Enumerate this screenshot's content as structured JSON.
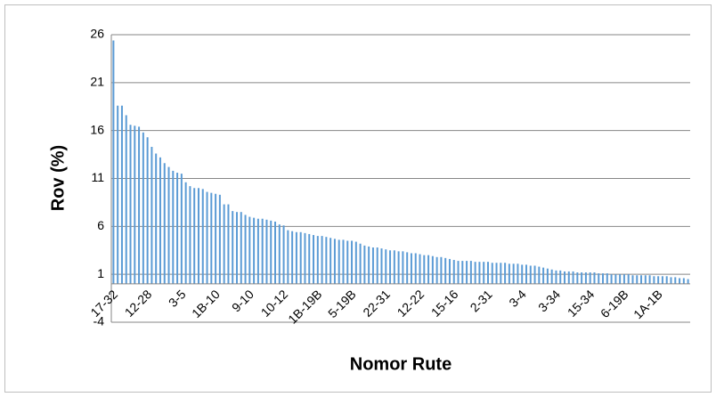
{
  "chart_data": {
    "type": "bar",
    "x_label": "Nomor Rute",
    "y_label": "Rov (%)",
    "color": "#5b9bd5",
    "grid": true,
    "ylim": [
      -4,
      26
    ],
    "yticks": [
      -4,
      1,
      6,
      11,
      16,
      21,
      26
    ],
    "categories": [
      "17-32",
      null,
      null,
      null,
      null,
      null,
      null,
      null,
      "12-28",
      null,
      null,
      null,
      null,
      null,
      null,
      null,
      "3-5",
      null,
      null,
      null,
      null,
      null,
      null,
      null,
      "1B-10",
      null,
      null,
      null,
      null,
      null,
      null,
      null,
      "9-10",
      null,
      null,
      null,
      null,
      null,
      null,
      null,
      "10-12",
      null,
      null,
      null,
      null,
      null,
      null,
      null,
      "1B-19B",
      null,
      null,
      null,
      null,
      null,
      null,
      null,
      "5-19B",
      null,
      null,
      null,
      null,
      null,
      null,
      null,
      "22-31",
      null,
      null,
      null,
      null,
      null,
      null,
      null,
      "12-22",
      null,
      null,
      null,
      null,
      null,
      null,
      null,
      "15-16",
      null,
      null,
      null,
      null,
      null,
      null,
      null,
      "2-31",
      null,
      null,
      null,
      null,
      null,
      null,
      null,
      "3-4",
      null,
      null,
      null,
      null,
      null,
      null,
      null,
      "3-34",
      null,
      null,
      null,
      null,
      null,
      null,
      null,
      "15-34",
      null,
      null,
      null,
      null,
      null,
      null,
      null,
      "6-19B",
      null,
      null,
      null,
      null,
      null,
      null,
      null,
      "1A-1B",
      null,
      null,
      null,
      null,
      null,
      null,
      null
    ],
    "values": [
      25.4,
      18.6,
      18.6,
      17.6,
      16.6,
      16.5,
      16.4,
      15.8,
      15.3,
      14.3,
      13.6,
      13.2,
      12.6,
      12.2,
      11.8,
      11.6,
      11.5,
      10.6,
      10.2,
      10.0,
      10.0,
      9.9,
      9.6,
      9.5,
      9.4,
      9.3,
      8.3,
      8.3,
      7.6,
      7.5,
      7.5,
      7.2,
      7.0,
      6.9,
      6.8,
      6.8,
      6.7,
      6.6,
      6.5,
      6.2,
      6.1,
      5.6,
      5.5,
      5.4,
      5.4,
      5.3,
      5.2,
      5.1,
      5.0,
      5.0,
      4.9,
      4.8,
      4.7,
      4.6,
      4.6,
      4.5,
      4.5,
      4.4,
      4.2,
      4.0,
      3.9,
      3.8,
      3.8,
      3.7,
      3.6,
      3.5,
      3.5,
      3.4,
      3.4,
      3.3,
      3.2,
      3.2,
      3.1,
      3.0,
      3.0,
      2.9,
      2.8,
      2.8,
      2.7,
      2.6,
      2.5,
      2.4,
      2.4,
      2.4,
      2.4,
      2.3,
      2.3,
      2.3,
      2.3,
      2.2,
      2.2,
      2.2,
      2.2,
      2.1,
      2.1,
      2.1,
      2.0,
      2.0,
      1.9,
      1.9,
      1.8,
      1.7,
      1.6,
      1.5,
      1.4,
      1.4,
      1.3,
      1.3,
      1.3,
      1.2,
      1.2,
      1.2,
      1.2,
      1.2,
      1.1,
      1.1,
      1.1,
      1.0,
      1.0,
      1.0,
      1.0,
      1.0,
      0.9,
      0.9,
      0.9,
      0.9,
      0.9,
      0.8,
      0.8,
      0.8,
      0.8,
      0.7,
      0.7,
      0.6,
      0.6,
      0.5
    ]
  }
}
